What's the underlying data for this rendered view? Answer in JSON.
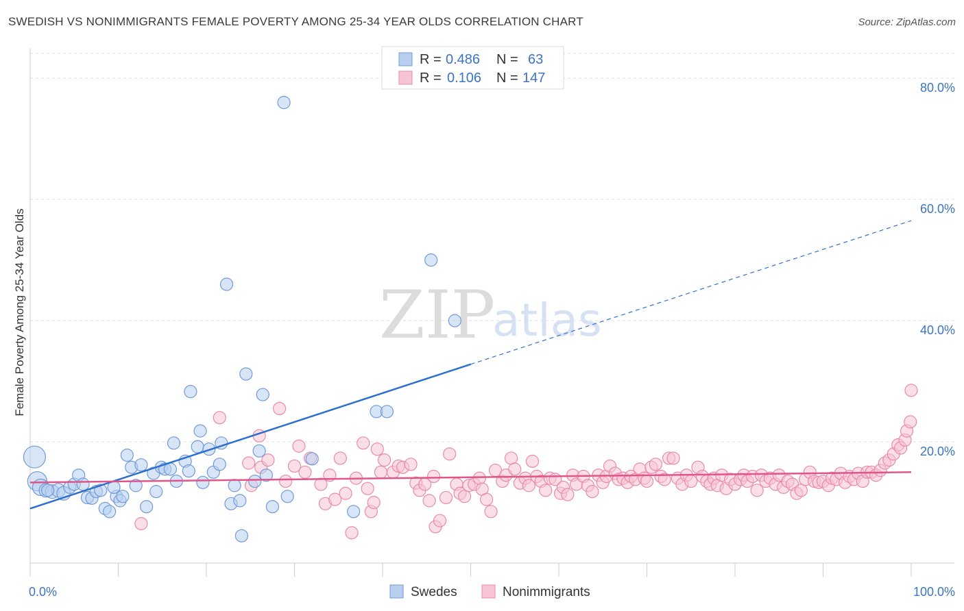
{
  "header": {
    "title": "SWEDISH VS NONIMMIGRANTS FEMALE POVERTY AMONG 25-34 YEAR OLDS CORRELATION CHART",
    "source": "Source: ZipAtlas.com"
  },
  "watermark": {
    "zip": "ZIP",
    "atlas": "atlas"
  },
  "legend": {
    "rows": [
      {
        "r_label": "R =",
        "r_value": "0.486",
        "n_label": "N =",
        "n_value": "63"
      },
      {
        "r_label": "R =",
        "r_value": "0.106",
        "n_label": "N =",
        "n_value": "147"
      }
    ]
  },
  "bottom_legend": {
    "items": [
      "Swedes",
      "Nonimmigrants"
    ]
  },
  "colors": {
    "swedes_fill": "#b8cff0",
    "swedes_stroke": "#6f9bd8",
    "swedes_line": "#2c6fcf",
    "nonimm_fill": "#f6c4d4",
    "nonimm_stroke": "#e98aaa",
    "nonimm_line": "#e0558a",
    "tick_text": "#3b74c4",
    "grid": "#dddddd"
  },
  "chart_data": {
    "type": "scatter",
    "ylabel": "Female Poverty Among 25-34 Year Olds",
    "xlim": [
      0,
      100
    ],
    "ylim": [
      0,
      85
    ],
    "x_tick_labels": [
      {
        "value": 0,
        "label": "0.0%"
      },
      {
        "value": 100,
        "label": "100.0%"
      }
    ],
    "y_tick_labels": [
      {
        "value": 20,
        "label": "20.0%"
      },
      {
        "value": 40,
        "label": "40.0%"
      },
      {
        "value": 60,
        "label": "60.0%"
      },
      {
        "value": 80,
        "label": "80.0%"
      }
    ],
    "x_minor_ticks": [
      0,
      10,
      20,
      30,
      40,
      50,
      60,
      70,
      80,
      90,
      100
    ],
    "grid": true,
    "series": [
      {
        "name": "Swedes",
        "R": 0.486,
        "N": 63,
        "trend": {
          "x0": 0,
          "y0": 9.0,
          "x1": 50,
          "y1": 32.8,
          "dash_to_x": 100,
          "dash_to_y": 56.5
        },
        "points": [
          [
            0.5,
            17.5,
            16
          ],
          [
            0.8,
            13.5,
            14
          ],
          [
            1.2,
            12.5,
            12
          ],
          [
            1.8,
            12.0,
            10
          ],
          [
            2.5,
            11.8,
            10
          ],
          [
            3.2,
            12.0,
            10
          ],
          [
            3.8,
            11.5,
            10
          ],
          [
            4.5,
            12.5,
            9
          ],
          [
            5.0,
            13.0,
            9
          ],
          [
            5.5,
            14.5,
            9
          ],
          [
            6.5,
            10.8,
            9
          ],
          [
            7.0,
            10.7,
            9
          ],
          [
            7.5,
            11.8,
            9
          ],
          [
            8.0,
            12.0,
            9
          ],
          [
            8.5,
            9.0,
            9
          ],
          [
            9.0,
            8.5,
            9
          ],
          [
            9.8,
            11.0,
            9
          ],
          [
            10.2,
            10.3,
            9
          ],
          [
            10.5,
            11.0,
            9
          ],
          [
            11.0,
            17.8,
            9
          ],
          [
            11.5,
            15.8,
            9
          ],
          [
            12.0,
            12.8,
            9
          ],
          [
            12.6,
            16.2,
            9
          ],
          [
            13.2,
            9.3,
            9
          ],
          [
            14.0,
            14.8,
            9
          ],
          [
            14.3,
            11.8,
            9
          ],
          [
            14.9,
            15.8,
            9
          ],
          [
            15.3,
            15.5,
            9
          ],
          [
            15.9,
            15.5,
            9
          ],
          [
            16.3,
            19.8,
            9
          ],
          [
            16.6,
            13.5,
            9
          ],
          [
            17.6,
            16.8,
            9
          ],
          [
            18.0,
            15.2,
            9
          ],
          [
            18.2,
            28.3,
            9
          ],
          [
            19.0,
            19.2,
            9
          ],
          [
            19.3,
            21.8,
            9
          ],
          [
            19.6,
            13.3,
            9
          ],
          [
            20.3,
            18.8,
            9
          ],
          [
            20.8,
            15.0,
            9
          ],
          [
            21.5,
            16.3,
            9
          ],
          [
            21.7,
            19.8,
            9
          ],
          [
            22.3,
            46.0,
            9
          ],
          [
            22.8,
            9.8,
            9
          ],
          [
            23.2,
            12.8,
            9
          ],
          [
            23.8,
            10.3,
            9
          ],
          [
            24.5,
            31.2,
            9
          ],
          [
            24.0,
            4.5,
            9
          ],
          [
            25.5,
            13.5,
            9
          ],
          [
            26.0,
            18.5,
            9
          ],
          [
            26.4,
            27.8,
            9
          ],
          [
            27.5,
            9.3,
            9
          ],
          [
            28.8,
            76.0,
            9
          ],
          [
            29.2,
            11.0,
            9
          ],
          [
            32.0,
            17.2,
            9
          ],
          [
            36.7,
            8.5,
            9
          ],
          [
            39.3,
            25.0,
            9
          ],
          [
            40.5,
            25.0,
            9
          ],
          [
            45.5,
            50.0,
            9
          ],
          [
            48.2,
            40.0,
            9
          ],
          [
            26.8,
            14.5,
            9
          ],
          [
            9.5,
            12.5,
            9
          ],
          [
            2.0,
            12.0,
            9
          ],
          [
            6.0,
            13.0,
            9
          ]
        ]
      },
      {
        "name": "Nonimmigrants",
        "R": 0.106,
        "N": 147,
        "trend": {
          "x0": 0,
          "y0": 13.3,
          "x1": 100,
          "y1": 15.0
        },
        "points": [
          [
            12.6,
            6.5,
            9
          ],
          [
            21.5,
            24.0,
            9
          ],
          [
            24.8,
            16.5,
            9
          ],
          [
            25.1,
            12.8,
            9
          ],
          [
            26.0,
            21.0,
            9
          ],
          [
            26.2,
            15.8,
            9
          ],
          [
            27.0,
            17.0,
            9
          ],
          [
            28.3,
            25.5,
            9
          ],
          [
            29.0,
            13.5,
            9
          ],
          [
            30.0,
            16.0,
            9
          ],
          [
            30.5,
            19.3,
            9
          ],
          [
            31.2,
            15.0,
            9
          ],
          [
            31.8,
            17.3,
            9
          ],
          [
            33.0,
            13.0,
            9
          ],
          [
            33.5,
            9.8,
            9
          ],
          [
            34.0,
            14.5,
            9
          ],
          [
            34.6,
            10.5,
            9
          ],
          [
            35.2,
            17.3,
            9
          ],
          [
            35.8,
            11.5,
            9
          ],
          [
            36.5,
            5.0,
            9
          ],
          [
            37.0,
            14.0,
            9
          ],
          [
            37.8,
            19.8,
            9
          ],
          [
            38.3,
            12.3,
            9
          ],
          [
            38.7,
            8.5,
            9
          ],
          [
            39.0,
            10.0,
            9
          ],
          [
            39.4,
            18.8,
            9
          ],
          [
            39.8,
            15.0,
            9
          ],
          [
            40.2,
            17.0,
            9
          ],
          [
            41.2,
            15.0,
            9
          ],
          [
            41.8,
            16.0,
            9
          ],
          [
            42.3,
            15.8,
            9
          ],
          [
            43.2,
            16.3,
            9
          ],
          [
            43.8,
            13.2,
            9
          ],
          [
            44.2,
            12.0,
            9
          ],
          [
            44.8,
            13.0,
            9
          ],
          [
            45.3,
            10.3,
            9
          ],
          [
            45.8,
            14.3,
            9
          ],
          [
            46.0,
            6.0,
            9
          ],
          [
            46.5,
            7.0,
            9
          ],
          [
            47.2,
            10.8,
            9
          ],
          [
            47.6,
            18.0,
            9
          ],
          [
            48.4,
            13.0,
            9
          ],
          [
            48.8,
            11.5,
            9
          ],
          [
            49.3,
            11.0,
            9
          ],
          [
            49.8,
            12.8,
            9
          ],
          [
            50.4,
            13.0,
            9
          ],
          [
            51.0,
            14.0,
            9
          ],
          [
            51.3,
            12.2,
            9
          ],
          [
            51.8,
            10.5,
            9
          ],
          [
            52.3,
            8.5,
            9
          ],
          [
            52.8,
            15.3,
            9
          ],
          [
            53.6,
            13.5,
            9
          ],
          [
            54.0,
            14.5,
            9
          ],
          [
            54.6,
            17.3,
            9
          ],
          [
            55.0,
            15.5,
            9
          ],
          [
            55.6,
            13.2,
            9
          ],
          [
            56.2,
            14.0,
            9
          ],
          [
            56.6,
            12.8,
            9
          ],
          [
            57.0,
            16.8,
            9
          ],
          [
            57.5,
            14.3,
            9
          ],
          [
            58.0,
            13.5,
            9
          ],
          [
            58.5,
            12.0,
            9
          ],
          [
            59.0,
            14.0,
            9
          ],
          [
            59.6,
            13.8,
            9
          ],
          [
            60.2,
            11.5,
            9
          ],
          [
            60.5,
            12.5,
            9
          ],
          [
            61.0,
            11.3,
            9
          ],
          [
            61.6,
            14.5,
            9
          ],
          [
            62.0,
            13.0,
            9
          ],
          [
            62.8,
            14.3,
            9
          ],
          [
            63.3,
            12.8,
            9
          ],
          [
            63.8,
            11.8,
            9
          ],
          [
            64.5,
            14.5,
            9
          ],
          [
            65.0,
            13.3,
            9
          ],
          [
            65.4,
            14.3,
            9
          ],
          [
            65.8,
            16.0,
            9
          ],
          [
            66.4,
            14.8,
            9
          ],
          [
            66.8,
            13.8,
            9
          ],
          [
            67.3,
            14.0,
            9
          ],
          [
            67.8,
            13.3,
            9
          ],
          [
            68.2,
            14.3,
            9
          ],
          [
            68.7,
            13.8,
            9
          ],
          [
            69.2,
            15.5,
            9
          ],
          [
            69.7,
            14.0,
            9
          ],
          [
            70.0,
            13.5,
            9
          ],
          [
            70.5,
            15.8,
            9
          ],
          [
            71.0,
            16.3,
            9
          ],
          [
            71.6,
            14.3,
            9
          ],
          [
            72.0,
            13.8,
            9
          ],
          [
            72.5,
            17.3,
            9
          ],
          [
            73.0,
            17.3,
            9
          ],
          [
            73.5,
            14.0,
            9
          ],
          [
            74.0,
            13.0,
            9
          ],
          [
            74.5,
            14.5,
            9
          ],
          [
            75.0,
            13.5,
            9
          ],
          [
            75.8,
            15.8,
            9
          ],
          [
            76.3,
            14.3,
            9
          ],
          [
            76.8,
            13.5,
            9
          ],
          [
            77.2,
            13.0,
            9
          ],
          [
            77.6,
            14.0,
            9
          ],
          [
            78.0,
            12.8,
            9
          ],
          [
            78.5,
            14.5,
            9
          ],
          [
            79.0,
            12.3,
            9
          ],
          [
            79.5,
            13.8,
            9
          ],
          [
            80.0,
            13.0,
            9
          ],
          [
            80.6,
            13.8,
            9
          ],
          [
            81.0,
            14.5,
            9
          ],
          [
            81.4,
            13.5,
            9
          ],
          [
            82.0,
            14.3,
            9
          ],
          [
            82.5,
            12.0,
            9
          ],
          [
            83.0,
            14.5,
            9
          ],
          [
            83.5,
            13.5,
            9
          ],
          [
            84.0,
            14.0,
            9
          ],
          [
            84.6,
            13.0,
            9
          ],
          [
            85.0,
            14.5,
            9
          ],
          [
            85.5,
            12.5,
            9
          ],
          [
            86.0,
            13.5,
            9
          ],
          [
            86.5,
            13.0,
            9
          ],
          [
            87.0,
            11.5,
            9
          ],
          [
            87.5,
            12.0,
            9
          ],
          [
            88.0,
            13.8,
            9
          ],
          [
            88.5,
            15.0,
            9
          ],
          [
            89.0,
            13.5,
            9
          ],
          [
            89.5,
            13.3,
            9
          ],
          [
            90.0,
            13.5,
            9
          ],
          [
            90.6,
            12.8,
            9
          ],
          [
            91.0,
            14.0,
            9
          ],
          [
            91.5,
            13.8,
            9
          ],
          [
            92.0,
            14.8,
            9
          ],
          [
            92.5,
            13.3,
            9
          ],
          [
            93.0,
            14.3,
            9
          ],
          [
            93.5,
            13.8,
            9
          ],
          [
            94.0,
            14.8,
            9
          ],
          [
            94.5,
            13.5,
            9
          ],
          [
            95.0,
            15.0,
            9
          ],
          [
            95.5,
            15.0,
            9
          ],
          [
            96.0,
            14.5,
            9
          ],
          [
            96.5,
            15.3,
            9
          ],
          [
            97.0,
            16.5,
            9
          ],
          [
            97.5,
            17.0,
            9
          ],
          [
            98.0,
            18.0,
            9
          ],
          [
            98.5,
            19.5,
            9
          ],
          [
            98.8,
            19.0,
            9
          ],
          [
            99.3,
            20.3,
            9
          ],
          [
            99.5,
            21.8,
            9
          ],
          [
            99.9,
            23.3,
            9
          ],
          [
            100.0,
            28.5,
            9
          ]
        ]
      }
    ]
  }
}
